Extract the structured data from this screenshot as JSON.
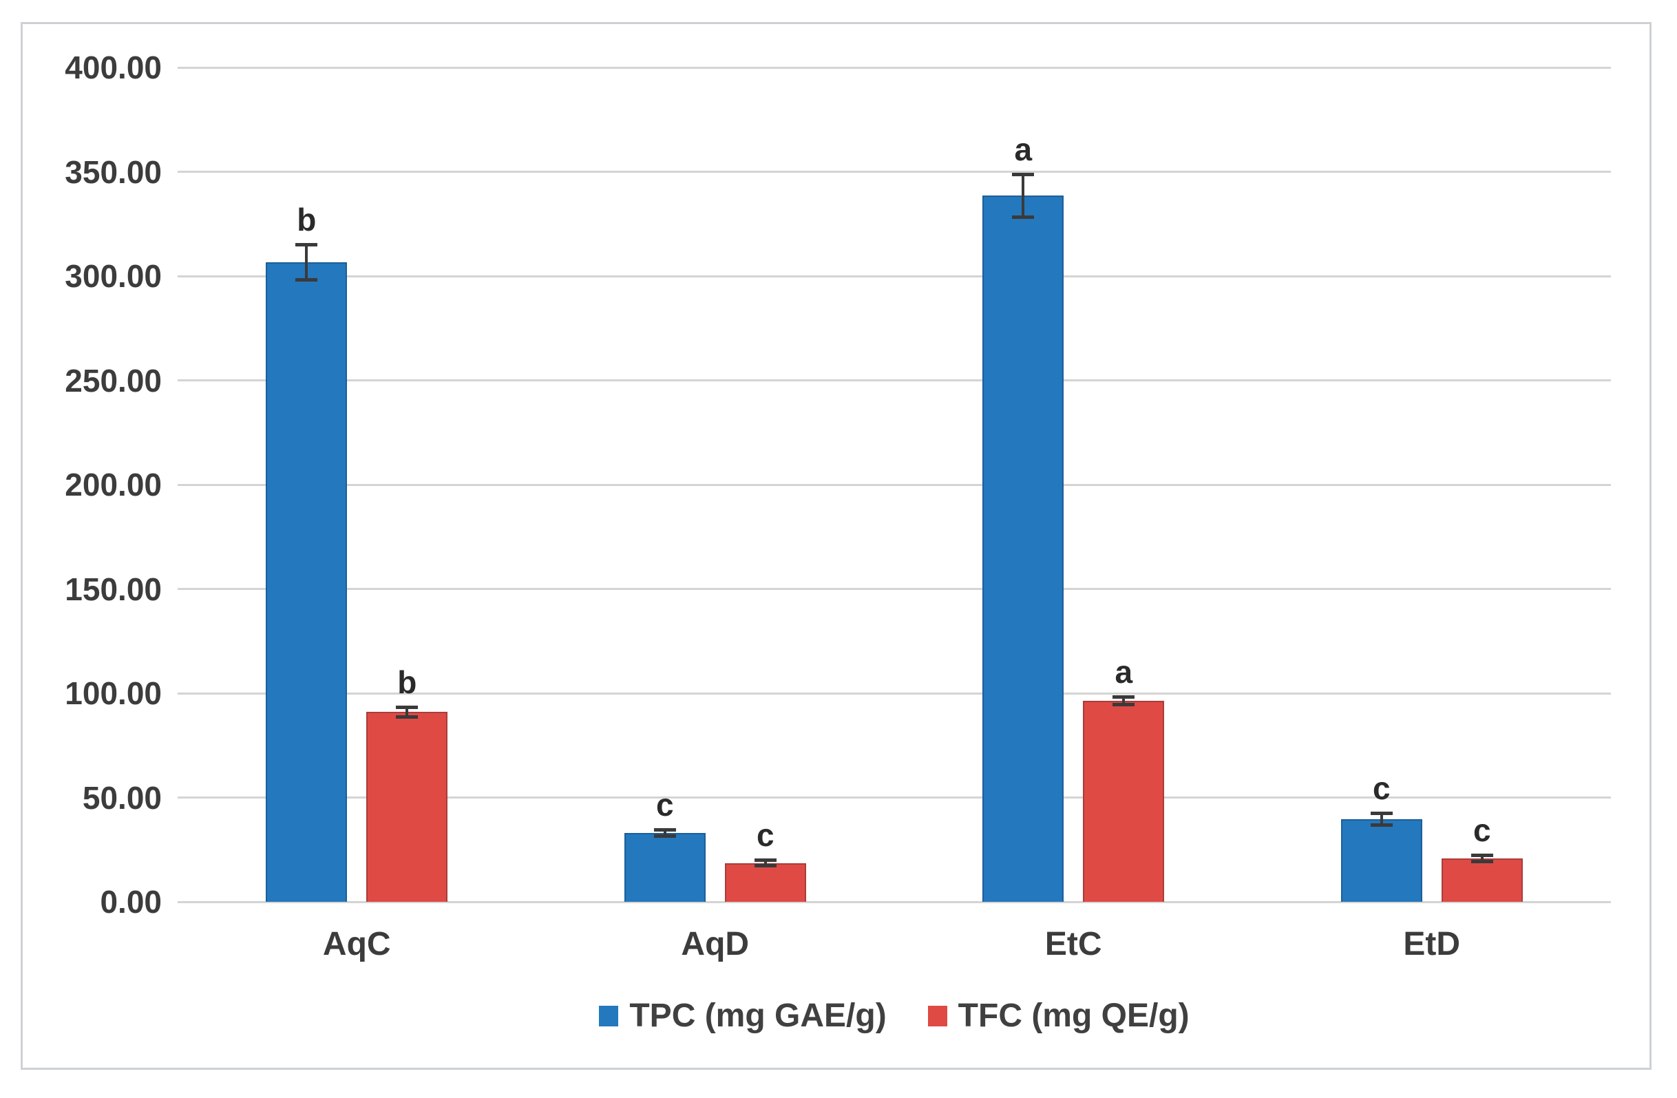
{
  "figure": {
    "background_color": "#ffffff",
    "frame_border_color": "#cdd1d5",
    "gridline_color": "#d4d4d4",
    "error_bar_color": "#3a3a3a",
    "text_color": "#3c3c3c"
  },
  "chart_data": {
    "type": "bar",
    "categories": [
      "AqC",
      "AqD",
      "EtC",
      "EtD"
    ],
    "series": [
      {
        "name": "TPC (mg GAE/g)",
        "color": "#2478bd",
        "edge_color": "#1c5f99",
        "values": [
          306.6,
          33.0,
          338.5,
          39.7
        ],
        "errors": [
          8.7,
          1.5,
          10.5,
          3.0
        ],
        "letters": [
          "b",
          "c",
          "a",
          "c"
        ]
      },
      {
        "name": "TFC (mg QE/g)",
        "color": "#df4a45",
        "edge_color": "#a83e3a",
        "values": [
          91.0,
          18.5,
          96.5,
          20.8
        ],
        "errors": [
          2.5,
          1.5,
          2.0,
          1.5
        ],
        "letters": [
          "b",
          "c",
          "a",
          "c"
        ]
      }
    ],
    "ylim": [
      0,
      400
    ],
    "y_ticks": [
      "0.00",
      "50.00",
      "100.00",
      "150.00",
      "200.00",
      "250.00",
      "300.00",
      "350.00",
      "400.00"
    ],
    "grid": true,
    "legend_position": "bottom",
    "xlabel": "",
    "ylabel": ""
  }
}
